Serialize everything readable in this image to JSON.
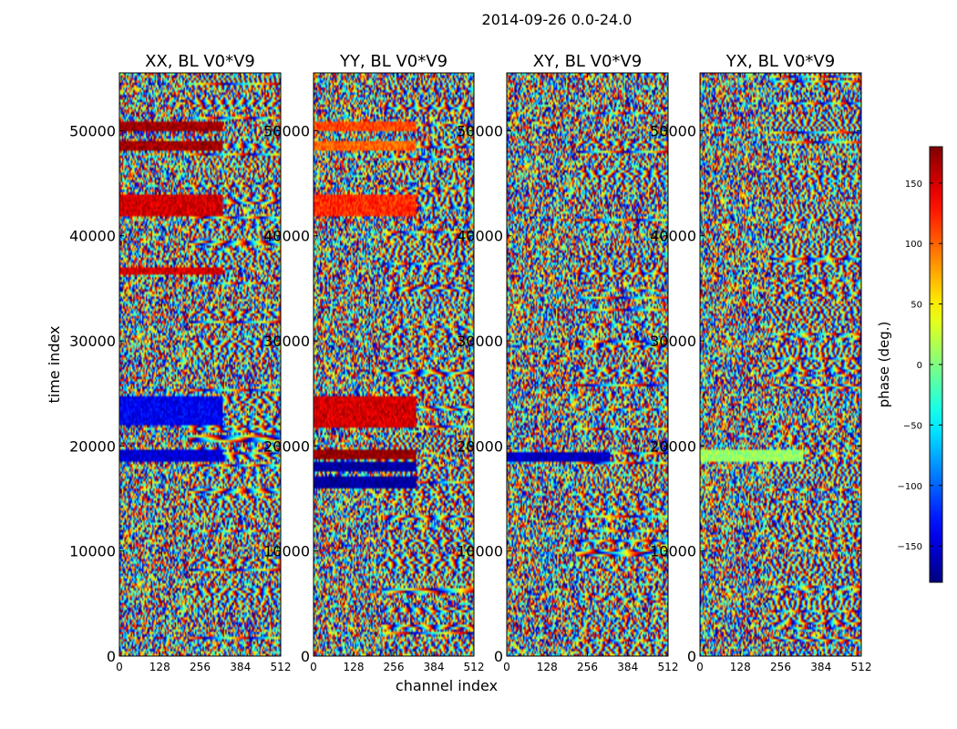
{
  "figure_title": "2014-09-26 0.0-24.0",
  "chart_data": [
    {
      "type": "heatmap",
      "title": "XX, BL V0*V9",
      "xlabel": "channel index",
      "ylabel": "time index",
      "x_ticks": [
        0,
        128,
        256,
        384,
        512
      ],
      "y_ticks": [
        0,
        10000,
        20000,
        30000,
        40000,
        50000
      ],
      "xlim": [
        0,
        512
      ],
      "ylim": [
        0,
        55500
      ],
      "color_quantity": "phase (deg.)",
      "bands": [
        {
          "from": 18500,
          "to": 19700,
          "value": -150
        },
        {
          "from": 22000,
          "to": 24800,
          "value": -140
        },
        {
          "from": 36200,
          "to": 37000,
          "value": 150
        },
        {
          "from": 41800,
          "to": 44000,
          "value": 150
        },
        {
          "from": 48000,
          "to": 49000,
          "value": 170
        },
        {
          "from": 50000,
          "to": 50800,
          "value": 170
        }
      ]
    },
    {
      "type": "heatmap",
      "title": "YY, BL V0*V9",
      "xlabel": "channel index",
      "ylabel": "",
      "x_ticks": [
        0,
        128,
        256,
        384,
        512
      ],
      "y_ticks": [
        0,
        10000,
        20000,
        30000,
        40000,
        50000
      ],
      "xlim": [
        0,
        512
      ],
      "ylim": [
        0,
        55500
      ],
      "color_quantity": "phase (deg.)",
      "bands": [
        {
          "from": 16000,
          "to": 17000,
          "value": -170
        },
        {
          "from": 17500,
          "to": 18600,
          "value": -170
        },
        {
          "from": 18800,
          "to": 19600,
          "value": 175
        },
        {
          "from": 21800,
          "to": 24700,
          "value": 150
        },
        {
          "from": 41800,
          "to": 44000,
          "value": 120
        },
        {
          "from": 48200,
          "to": 49100,
          "value": 100
        },
        {
          "from": 50000,
          "to": 50800,
          "value": 110
        }
      ]
    },
    {
      "type": "heatmap",
      "title": "XY, BL V0*V9",
      "xlabel": "",
      "ylabel": "",
      "x_ticks": [
        0,
        128,
        256,
        384,
        512
      ],
      "y_ticks": [
        0,
        10000,
        20000,
        30000,
        40000,
        50000
      ],
      "xlim": [
        0,
        512
      ],
      "ylim": [
        0,
        55500
      ],
      "color_quantity": "phase (deg.)",
      "bands": [
        {
          "from": 18500,
          "to": 19500,
          "value": -155
        }
      ]
    },
    {
      "type": "heatmap",
      "title": "YX, BL V0*V9",
      "xlabel": "",
      "ylabel": "",
      "x_ticks": [
        0,
        128,
        256,
        384,
        512
      ],
      "y_ticks": [
        0,
        10000,
        20000,
        30000,
        40000,
        50000
      ],
      "xlim": [
        0,
        512
      ],
      "ylim": [
        0,
        55500
      ],
      "color_quantity": "phase (deg.)",
      "bands": [
        {
          "from": 18500,
          "to": 19700,
          "value": 10
        }
      ]
    }
  ],
  "colorbar": {
    "label": "phase (deg.)",
    "range": [
      -180,
      180
    ],
    "ticks": [
      150,
      100,
      50,
      0,
      -50,
      -100,
      -150
    ],
    "tick_labels": [
      "150",
      "100",
      "50",
      "0",
      "−50",
      "−100",
      "−150"
    ]
  }
}
